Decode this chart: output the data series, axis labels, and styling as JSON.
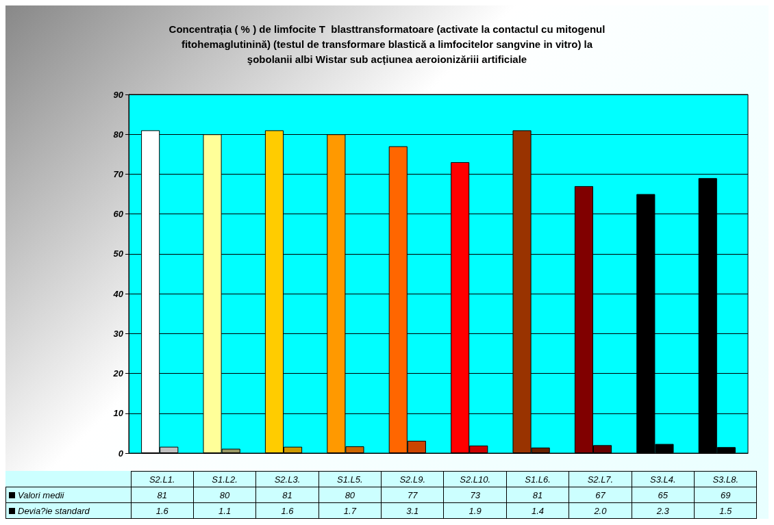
{
  "chart_data": {
    "type": "bar",
    "title": "Concentrația ( % ) de limfocite T  blasttransformatoare (activate la contactul cu mitogenul\nfitohemaglutinină) (testul de transformare blastică a limfocitelor sangvine in vitro) la\nşobolanii albi Wistar sub acțiunea aeroionizăriii artificiale",
    "categories": [
      "S2.L1.",
      "S1.L2.",
      "S2.L3.",
      "S1.L5.",
      "S2.L9.",
      "S2.L10.",
      "S1.L6.",
      "S2.L7.",
      "S3.L4.",
      "S3.L8."
    ],
    "series": [
      {
        "name": "Valori medii",
        "values": [
          81,
          80,
          81,
          80,
          77,
          73,
          81,
          67,
          65,
          69
        ],
        "value_labels": [
          "81",
          "80",
          "81",
          "80",
          "77",
          "73",
          "81",
          "67",
          "65",
          "69"
        ],
        "colors": [
          "#ffffff",
          "#ffff99",
          "#ffcc00",
          "#ff9900",
          "#ff6600",
          "#ff0000",
          "#993300",
          "#800000",
          "#000000",
          "#000000"
        ]
      },
      {
        "name": "Devia?ie standard",
        "values": [
          1.6,
          1.1,
          1.6,
          1.7,
          3.1,
          1.9,
          1.4,
          2.0,
          2.3,
          1.5
        ],
        "value_labels": [
          "1.6",
          "1.1",
          "1.6",
          "1.7",
          "3.1",
          "1.9",
          "1.4",
          "2.0",
          "2.3",
          "1.5"
        ],
        "colors": [
          "#c0c0c0",
          "#999966",
          "#cc9900",
          "#cc6600",
          "#cc4400",
          "#cc0000",
          "#662200",
          "#660000",
          "#000000",
          "#000000"
        ]
      }
    ],
    "ylim": [
      0,
      90
    ],
    "yticks": [
      0,
      10,
      20,
      30,
      40,
      50,
      60,
      70,
      80,
      90
    ],
    "grid": "y",
    "legend": "bottom"
  }
}
